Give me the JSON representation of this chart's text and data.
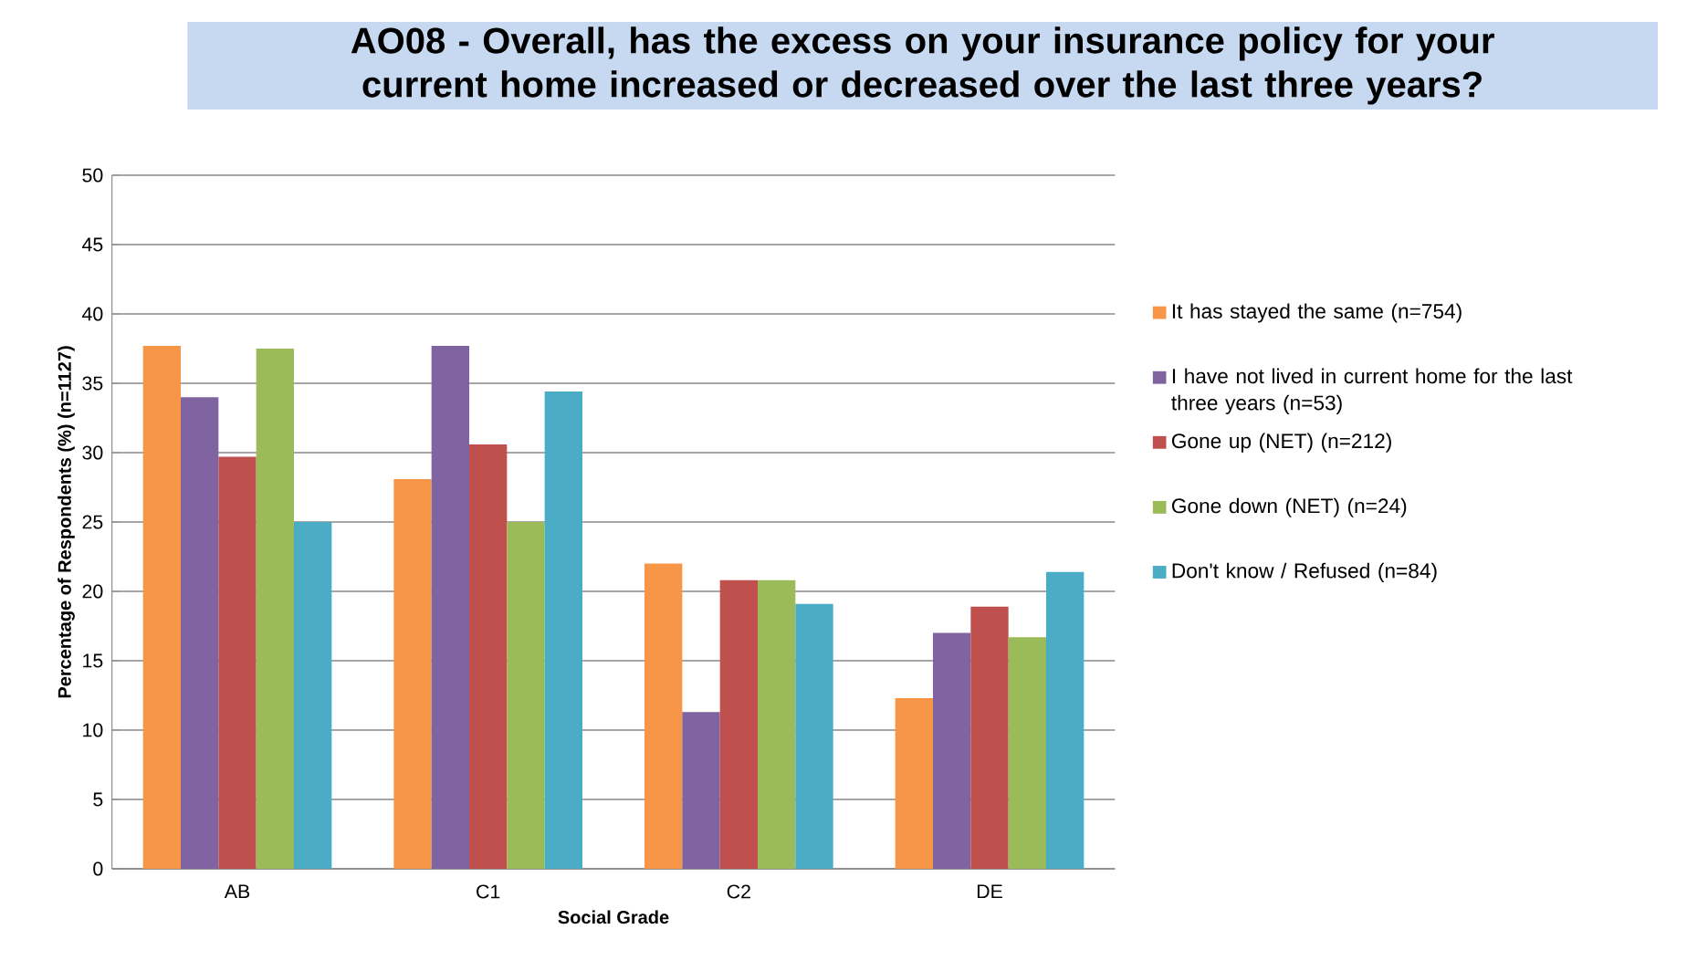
{
  "chart_data": {
    "type": "bar",
    "title": "AO08 - Overall, has the excess on your insurance policy for your current home increased or decreased over the last three years?",
    "xlabel": "Social Grade",
    "ylabel": "Percentage of Respondents (%) (n=1127)",
    "categories": [
      "AB",
      "C1",
      "C2",
      "DE"
    ],
    "series": [
      {
        "name": "It has stayed the same (n=754)",
        "color": "#f79646",
        "values": [
          37.7,
          28.1,
          22.0,
          12.3
        ]
      },
      {
        "name": "I have not lived in current home for the last three years (n=53)",
        "color": "#8064a2",
        "values": [
          34.0,
          37.7,
          11.3,
          17.0
        ]
      },
      {
        "name": "Gone up (NET) (n=212)",
        "color": "#c0504d",
        "values": [
          29.7,
          30.6,
          20.8,
          18.9
        ]
      },
      {
        "name": "Gone down (NET)  (n=24)",
        "color": "#9bbb59",
        "values": [
          37.5,
          25.0,
          20.8,
          16.7
        ]
      },
      {
        "name": "Don't know / Refused (n=84)",
        "color": "#4bacc6",
        "values": [
          25.0,
          34.4,
          19.1,
          21.4
        ]
      }
    ],
    "ylim": [
      0,
      50
    ],
    "yticks": [
      0,
      5,
      10,
      15,
      20,
      25,
      30,
      35,
      40,
      45,
      50
    ],
    "grid": "y",
    "legend": "right"
  }
}
